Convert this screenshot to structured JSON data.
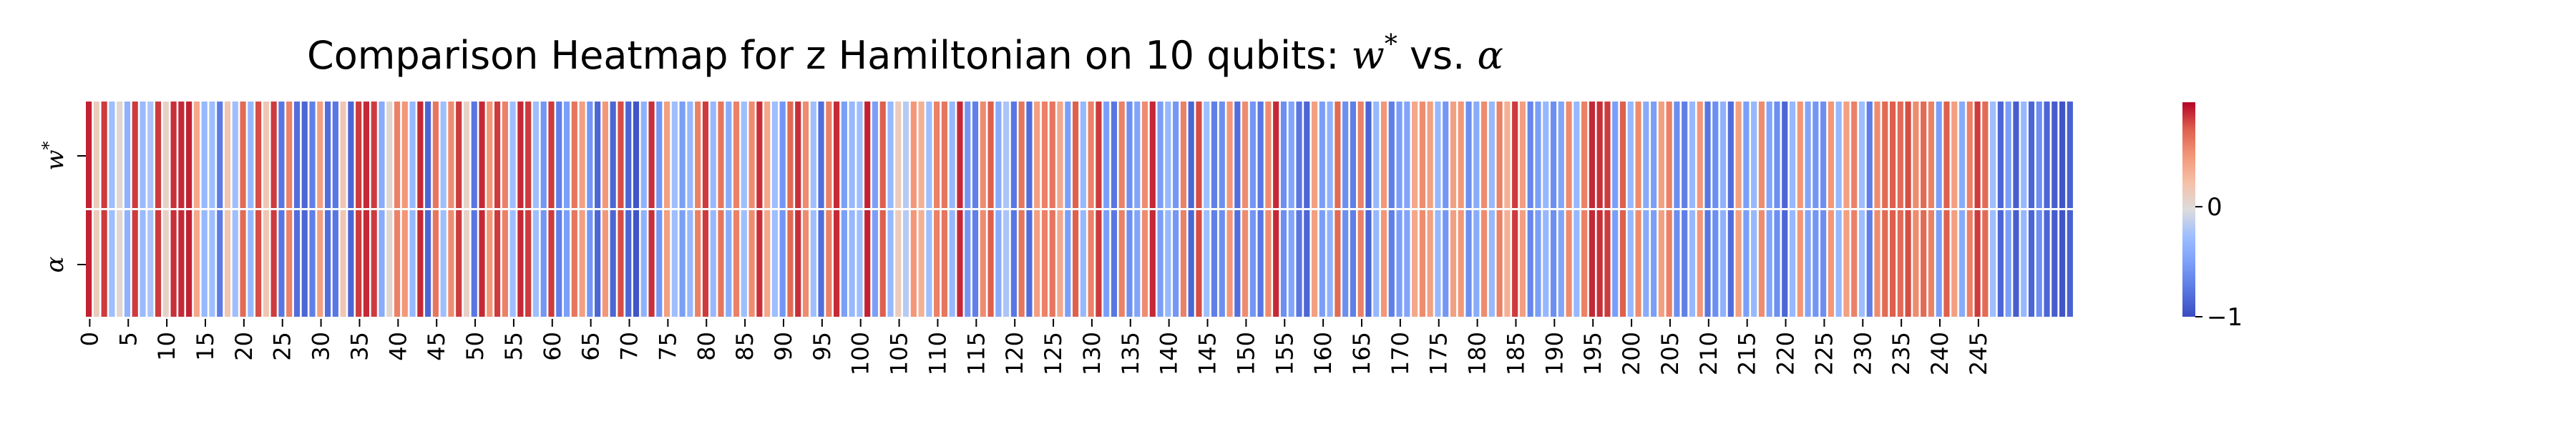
{
  "chart_data": {
    "type": "heatmap",
    "title": "Comparison Heatmap for z Hamiltonian on 10 qubits: w* vs. α",
    "title_parts": {
      "prefix": "Comparison Heatmap for z Hamiltonian on 10 qubits: ",
      "w": "w",
      "star": "*",
      "vs": " vs. ",
      "alpha": "α"
    },
    "rows": [
      {
        "label_base": "w",
        "label_sup": "*"
      },
      {
        "label_base": "α",
        "label_sup": ""
      }
    ],
    "x_count": 256,
    "x_ticks": [
      0,
      5,
      10,
      15,
      20,
      25,
      30,
      35,
      40,
      45,
      50,
      55,
      60,
      65,
      70,
      75,
      80,
      85,
      90,
      95,
      100,
      105,
      110,
      115,
      120,
      125,
      130,
      135,
      140,
      145,
      150,
      155,
      160,
      165,
      170,
      175,
      180,
      185,
      190,
      195,
      200,
      205,
      210,
      215,
      220,
      225,
      230,
      235,
      240,
      245
    ],
    "x_tick_labels": [
      "0",
      "5",
      "10",
      "15",
      "20",
      "25",
      "30",
      "35",
      "40",
      "45",
      "50",
      "55",
      "60",
      "65",
      "70",
      "75",
      "80",
      "85",
      "90",
      "95",
      "100",
      "105",
      "110",
      "115",
      "120",
      "125",
      "130",
      "135",
      "140",
      "145",
      "150",
      "155",
      "160",
      "165",
      "170",
      "175",
      "180",
      "185",
      "190",
      "195",
      "200",
      "205",
      "210",
      "215",
      "220",
      "225",
      "230",
      "235",
      "240",
      "245"
    ],
    "values": [
      0.92,
      0.15,
      0.85,
      -0.25,
      0.05,
      -0.35,
      0.85,
      -0.28,
      -0.2,
      0.85,
      0.1,
      0.88,
      0.9,
      0.92,
      0.4,
      -0.3,
      -0.25,
      -0.72,
      0.2,
      -0.25,
      0.7,
      -0.3,
      0.8,
      0.2,
      0.85,
      -0.75,
      0.6,
      -0.8,
      -0.85,
      -0.7,
      0.45,
      -0.8,
      -0.75,
      0.2,
      -0.85,
      0.85,
      0.9,
      0.85,
      -0.4,
      0.05,
      0.6,
      0.5,
      -0.3,
      0.9,
      -0.85,
      0.65,
      -0.25,
      0.55,
      0.85,
      0.1,
      -0.75,
      0.9,
      0.5,
      0.85,
      0.6,
      -0.25,
      0.9,
      0.85,
      -0.25,
      -0.55,
      0.85,
      -0.7,
      -0.5,
      0.65,
      0.45,
      -0.55,
      -0.85,
      0.5,
      -0.85,
      0.8,
      -0.85,
      -0.95,
      -0.35,
      0.88,
      -0.55,
      0.45,
      -0.25,
      -0.5,
      -0.3,
      0.6,
      0.85,
      -0.3,
      0.65,
      -0.4,
      0.6,
      -0.25,
      0.55,
      0.88,
      0.4,
      -0.25,
      -0.55,
      0.7,
      0.88,
      0.55,
      -0.25,
      -0.8,
      0.6,
      0.9,
      -0.5,
      -0.3,
      -0.25,
      0.92,
      -0.5,
      0.75,
      -0.3,
      0.15,
      -0.15,
      0.5,
      0.35,
      -0.25,
      0.6,
      0.65,
      -0.3,
      0.9,
      -0.55,
      -0.7,
      0.55,
      0.75,
      -0.4,
      -0.2,
      -0.75,
      0.65,
      -0.8,
      0.45,
      0.6,
      0.65,
      0.4,
      -0.5,
      0.75,
      -0.3,
      0.6,
      0.85,
      -0.5,
      -0.75,
      0.6,
      -0.6,
      -0.45,
      0.55,
      0.9,
      -0.5,
      -0.3,
      -0.55,
      0.6,
      -0.85,
      0.8,
      -0.25,
      -0.7,
      -0.6,
      0.5,
      -0.8,
      0.55,
      -0.55,
      -0.75,
      0.55,
      0.9,
      -0.6,
      -0.45,
      -0.75,
      -0.85,
      0.45,
      -0.5,
      -0.35,
      0.7,
      -0.6,
      -0.7,
      0.6,
      -0.85,
      -0.3,
      0.5,
      -0.7,
      -0.5,
      -0.45,
      0.4,
      0.55,
      0.45,
      -0.3,
      -0.55,
      0.45,
      0.5,
      -0.6,
      -0.4,
      0.55,
      -0.3,
      0.6,
      0.35,
      0.85,
      0.45,
      -0.65,
      -0.5,
      -0.3,
      -0.6,
      -0.45,
      0.55,
      -0.3,
      0.6,
      0.9,
      0.88,
      0.85,
      -0.5,
      0.75,
      -0.3,
      0.55,
      -0.4,
      -0.5,
      0.45,
      0.6,
      -0.6,
      -0.7,
      -0.3,
      0.5,
      -0.75,
      -0.6,
      -0.35,
      -0.8,
      0.45,
      -0.5,
      -0.3,
      0.55,
      -0.45,
      -0.6,
      -0.85,
      -0.3,
      0.5,
      -0.45,
      -0.55,
      -0.6,
      0.5,
      -0.3,
      0.45,
      0.6,
      -0.25,
      -0.7,
      0.55,
      0.7,
      0.75,
      0.7,
      0.8,
      0.55,
      0.7,
      0.6,
      -0.5,
      0.75,
      0.45,
      -0.4,
      0.6,
      0.85,
      0.7,
      -0.25,
      -0.85,
      -0.5,
      -0.9,
      -0.3,
      -0.85,
      -0.6,
      -0.85,
      -0.9,
      -0.95,
      -0.88
    ],
    "colorbar": {
      "vmin": -1,
      "vmax": 0.95,
      "ticks": [
        -1,
        0
      ],
      "tick_labels": [
        "−1",
        "0"
      ],
      "colormap": "coolwarm"
    },
    "colors": {
      "low": "#3b4cc0",
      "mid": "#dddddd",
      "high": "#b40426"
    }
  }
}
